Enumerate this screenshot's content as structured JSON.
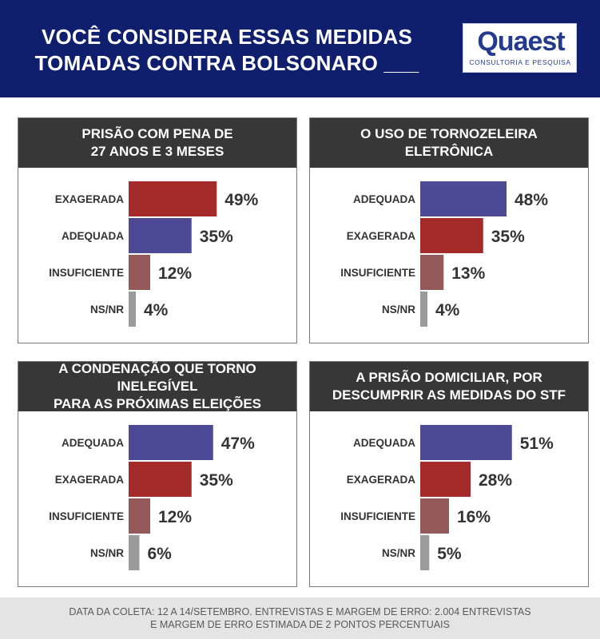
{
  "header": {
    "title_line1": "VOCÊ CONSIDERA ESSAS MEDIDAS",
    "title_line2": "TOMADAS CONTRA BOLSONARO ___",
    "logo_word": "Quaest",
    "logo_sub": "CONSULTORIA E PESQUISA"
  },
  "colors": {
    "header_bg": "#0f1f6e",
    "panel_head_bg": "#373737",
    "bar_adequada": "#4c4a95",
    "bar_exagerada": "#a52a2a",
    "bar_insuficiente": "#945a5a",
    "bar_nsnr": "#9b9b9b"
  },
  "chart_data": [
    {
      "type": "bar",
      "title_line1": "PRISÃO COM PENA DE",
      "title_line2": "27 ANOS E 3 MESES",
      "categories": [
        "EXAGERADA",
        "ADEQUADA",
        "INSUFICIENTE",
        "NS/NR"
      ],
      "values": [
        49,
        35,
        12,
        4
      ],
      "value_labels": [
        "49%",
        "35%",
        "12%",
        "4%"
      ],
      "colors": [
        "#a52a2a",
        "#4c4a95",
        "#945a5a",
        "#9b9b9b"
      ]
    },
    {
      "type": "bar",
      "title_line1": "O USO DE TORNOZELEIRA",
      "title_line2": "ELETRÔNICA",
      "categories": [
        "ADEQUADA",
        "EXAGERADA",
        "INSUFICIENTE",
        "NS/NR"
      ],
      "values": [
        48,
        35,
        13,
        4
      ],
      "value_labels": [
        "48%",
        "35%",
        "13%",
        "4%"
      ],
      "colors": [
        "#4c4a95",
        "#a52a2a",
        "#945a5a",
        "#9b9b9b"
      ]
    },
    {
      "type": "bar",
      "title_line1": "A CONDENAÇÃO QUE TORNO INELEGÍVEL",
      "title_line2": "PARA AS PRÓXIMAS ELEIÇÕES",
      "categories": [
        "ADEQUADA",
        "EXAGERADA",
        "INSUFICIENTE",
        "NS/NR"
      ],
      "values": [
        47,
        35,
        12,
        6
      ],
      "value_labels": [
        "47%",
        "35%",
        "12%",
        "6%"
      ],
      "colors": [
        "#4c4a95",
        "#a52a2a",
        "#945a5a",
        "#9b9b9b"
      ]
    },
    {
      "type": "bar",
      "title_line1": "A PRISÃO DOMICILIAR, POR",
      "title_line2": "DESCUMPRIR AS MEDIDAS DO STF",
      "categories": [
        "ADEQUADA",
        "EXAGERADA",
        "INSUFICIENTE",
        "NS/NR"
      ],
      "values": [
        51,
        28,
        16,
        5
      ],
      "value_labels": [
        "51%",
        "28%",
        "16%",
        "5%"
      ],
      "colors": [
        "#4c4a95",
        "#a52a2a",
        "#945a5a",
        "#9b9b9b"
      ]
    }
  ],
  "footer": {
    "line1": "DATA DA COLETA: 12 A 14/SETEMBRO. ENTREVISTAS E MARGEM DE ERRO: 2.004 ENTREVISTAS",
    "line2": "E MARGEM DE ERRO ESTIMADA DE 2 PONTOS PERCENTUAIS"
  }
}
